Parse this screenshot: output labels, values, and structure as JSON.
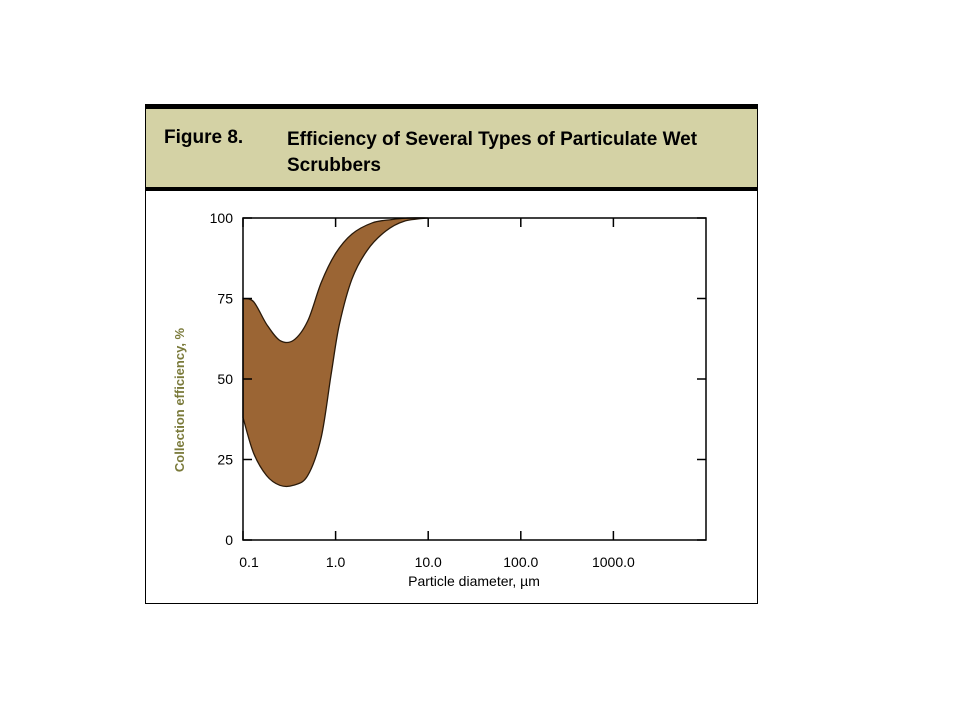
{
  "figure": {
    "number": "Figure 8.",
    "title": "Efficiency of Several Types of Particulate Wet Scrubbers"
  },
  "colors": {
    "band_fill": "#9b6534",
    "band_stroke": "#2a1a0a",
    "header_bg": "#d4d2a5",
    "ylabel_color": "#7a7a3a"
  },
  "chart_data": {
    "type": "area",
    "title": "Efficiency of Several Types of Particulate Wet Scrubbers",
    "xlabel": "Particle diameter, µm",
    "ylabel": "Collection efficiency, %",
    "x_scale": "log",
    "xlim": [
      0.1,
      10000
    ],
    "ylim": [
      0,
      100
    ],
    "x_ticks": [
      0.1,
      1,
      10,
      100,
      1000
    ],
    "x_tick_labels": [
      "0.1",
      "1.0",
      "10.0",
      "100.0",
      "1000.0"
    ],
    "y_ticks": [
      0,
      25,
      50,
      75,
      100
    ],
    "y_tick_labels": [
      "0",
      "25",
      "50",
      "75",
      "100"
    ],
    "grid": false,
    "band": {
      "upper": [
        [
          0.1,
          75
        ],
        [
          0.13,
          74
        ],
        [
          0.18,
          67
        ],
        [
          0.25,
          62
        ],
        [
          0.35,
          62
        ],
        [
          0.5,
          68
        ],
        [
          0.7,
          80
        ],
        [
          1.0,
          89
        ],
        [
          1.5,
          95
        ],
        [
          2.5,
          98.5
        ],
        [
          4.0,
          99.5
        ],
        [
          6.0,
          100
        ],
        [
          10.0,
          100
        ]
      ],
      "lower": [
        [
          0.1,
          38
        ],
        [
          0.13,
          27
        ],
        [
          0.18,
          20
        ],
        [
          0.25,
          17
        ],
        [
          0.35,
          17
        ],
        [
          0.5,
          20
        ],
        [
          0.7,
          32
        ],
        [
          0.9,
          52
        ],
        [
          1.1,
          67
        ],
        [
          1.5,
          81
        ],
        [
          2.2,
          90
        ],
        [
          3.5,
          96
        ],
        [
          5.5,
          99
        ],
        [
          10.0,
          100
        ]
      ]
    }
  }
}
